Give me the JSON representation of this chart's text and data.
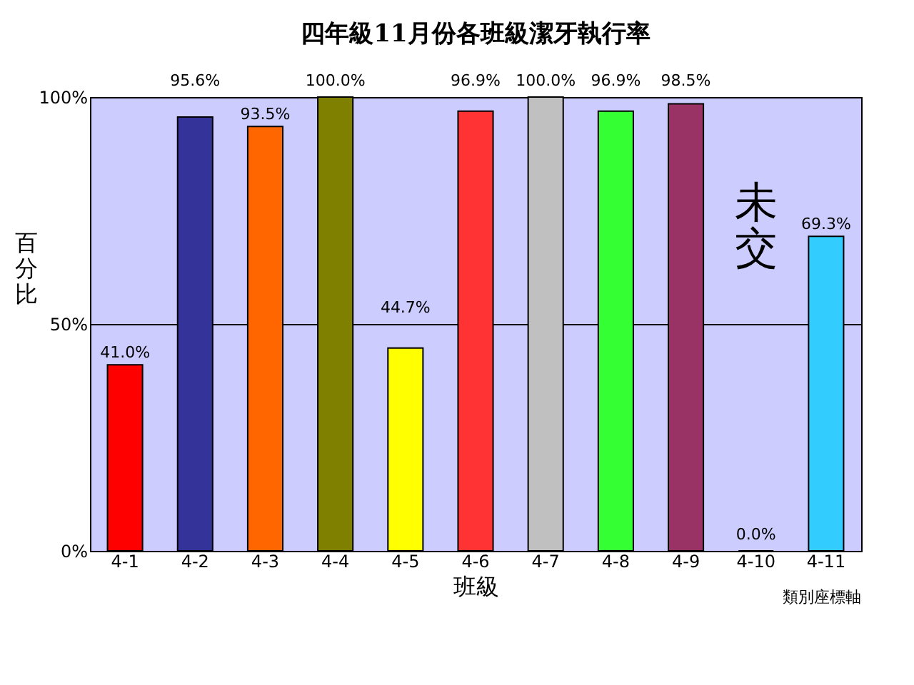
{
  "chart_data": {
    "type": "bar",
    "title": "四年級11月份各班級潔牙執行率",
    "xlabel": "班級",
    "ylabel": "百分比",
    "categories": [
      "4-1",
      "4-2",
      "4-3",
      "4-4",
      "4-5",
      "4-6",
      "4-7",
      "4-8",
      "4-9",
      "4-10",
      "4-11"
    ],
    "values": [
      41.0,
      95.6,
      93.5,
      100.0,
      44.7,
      96.9,
      100.0,
      96.9,
      98.5,
      0.0,
      69.3
    ],
    "value_labels": [
      "41.0%",
      "95.6%",
      "93.5%",
      "100.0%",
      "44.7%",
      "96.9%",
      "100.0%",
      "96.9%",
      "98.5%",
      "0.0%",
      "69.3%"
    ],
    "colors": [
      "#ff0000",
      "#333399",
      "#ff6600",
      "#808000",
      "#ffff00",
      "#ff3333",
      "#c0c0c0",
      "#33ff33",
      "#993366",
      "#000000",
      "#33ccff"
    ],
    "ylim": [
      0,
      100
    ],
    "yticks": [
      {
        "value": 0,
        "label": "0%"
      },
      {
        "value": 50,
        "label": "50%"
      },
      {
        "value": 100,
        "label": "100%"
      }
    ],
    "grid": "y",
    "annotations": [
      "未交",
      "類別座標軸"
    ]
  }
}
